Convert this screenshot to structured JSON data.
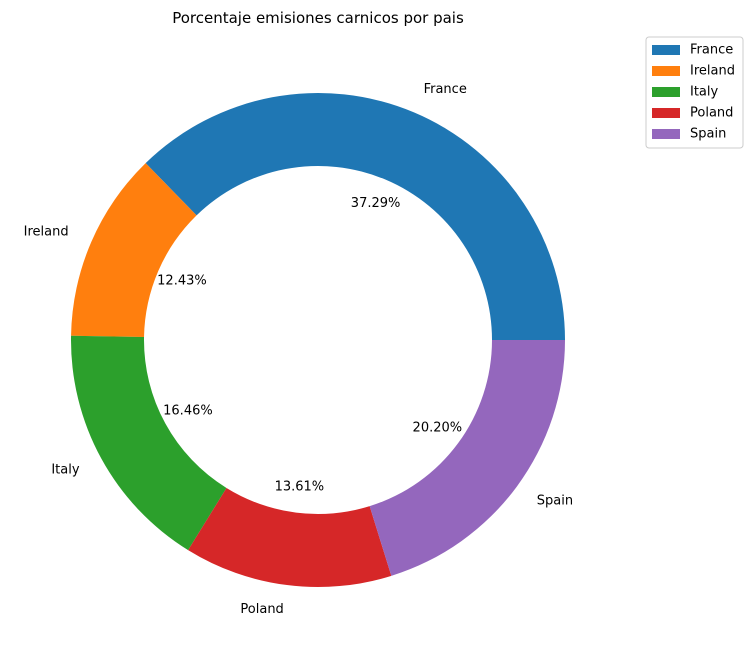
{
  "chart_data": {
    "type": "pie",
    "style": "donut",
    "title": "Porcentaje emisiones carnicos por pais",
    "categories": [
      "France",
      "Ireland",
      "Italy",
      "Poland",
      "Spain"
    ],
    "values": [
      37.29,
      12.43,
      16.46,
      13.61,
      20.2
    ],
    "percent_labels": [
      "37.29%",
      "12.43%",
      "16.46%",
      "13.61%",
      "20.20%"
    ],
    "colors": [
      "#1f77b4",
      "#ff7f0e",
      "#2ca02c",
      "#d62728",
      "#9467bd"
    ],
    "legend": {
      "placement": "top-right outside",
      "entries": [
        "France",
        "Ireland",
        "Italy",
        "Poland",
        "Spain"
      ]
    }
  }
}
